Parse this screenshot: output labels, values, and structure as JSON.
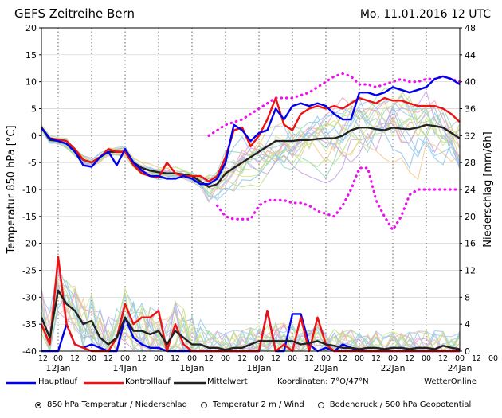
{
  "chart_data": {
    "type": "line",
    "title": "GEFS Zeitreihe Bern",
    "run_time": "Mo, 11.01.2016  12 UTC",
    "ylabel_left": "Temperatur 850 hPa [°C]",
    "ylabel_right": "Niederschlag [mm/6h]",
    "ylim_left": [
      -40,
      20
    ],
    "ylim_right": [
      0,
      48
    ],
    "yticks_left": [
      "20",
      "15",
      "10",
      "5",
      "0",
      "-5",
      "-10",
      "-15",
      "-20",
      "-25",
      "-30",
      "-35",
      "-40"
    ],
    "yticks_right": [
      "48",
      "44",
      "40",
      "36",
      "32",
      "28",
      "24",
      "20",
      "16",
      "12",
      "8",
      "4",
      "0"
    ],
    "x_hour_ticks": [
      "12",
      "00",
      "12",
      "00",
      "12",
      "00",
      "12",
      "00",
      "12",
      "00",
      "12",
      "00",
      "12",
      "00",
      "12",
      "00",
      "12",
      "00",
      "12",
      "00",
      "12",
      "00",
      "12",
      "00",
      "12",
      "00",
      "12",
      "00",
      "12",
      "00",
      "12",
      "00",
      "12"
    ],
    "x_date_labels": [
      "12Jan",
      "14Jan",
      "16Jan",
      "18Jan",
      "20Jan",
      "22Jan",
      "24Jan"
    ],
    "x_step_hours": 6,
    "legend": {
      "main": "Hauptlauf",
      "control": "Kontrolllauf",
      "mean": "Mittelwert",
      "coords": "Koordinaten:  7°O/47°N",
      "source": "WetterOnline"
    },
    "colors": {
      "main": "#0000ee",
      "control": "#ee1111",
      "mean": "#222222",
      "spread": "#ee11ee"
    },
    "series": [
      {
        "name": "Hauptlauf",
        "role": "main",
        "values": [
          1.5,
          -0.5,
          -1,
          -1.5,
          -3,
          -5.5,
          -5.8,
          -4,
          -3,
          -5.5,
          -2.5,
          -5,
          -6.5,
          -7.5,
          -7.5,
          -8,
          -8,
          -7.5,
          -8,
          -9,
          -9,
          -8,
          -5,
          2,
          1,
          -1,
          0.5,
          1,
          5,
          3,
          5.5,
          6,
          5.5,
          6,
          5.5,
          4,
          3,
          3,
          8,
          8,
          7.5,
          8,
          9,
          8.5,
          8,
          8.5,
          9,
          10.5,
          11,
          10.5,
          9.5
        ]
      },
      {
        "name": "Kontrolllauf",
        "role": "control",
        "values": [
          1.5,
          -0.5,
          -0.7,
          -1,
          -2.5,
          -4.5,
          -5,
          -4,
          -2.5,
          -3,
          -3,
          -5.5,
          -7,
          -7.5,
          -7.8,
          -5,
          -7,
          -7.5,
          -7.5,
          -7.5,
          -8.5,
          -7.5,
          -4,
          1,
          1.5,
          -2,
          0,
          3,
          7,
          2,
          1,
          4,
          5,
          5.5,
          5,
          5.5,
          5,
          6,
          7,
          6.5,
          6,
          7,
          6.5,
          6.5,
          6,
          5.5,
          5.5,
          5.5,
          5,
          4,
          2.5
        ]
      },
      {
        "name": "Mittelwert",
        "role": "mean",
        "values": [
          1.5,
          -0.8,
          -1,
          -1.5,
          -3,
          -4.5,
          -5,
          -4,
          -3,
          -3,
          -3,
          -5,
          -6,
          -6.5,
          -6.8,
          -7,
          -7,
          -7.2,
          -7.5,
          -8.5,
          -9.5,
          -9,
          -7,
          -6,
          -5,
          -4,
          -3,
          -2,
          -1,
          -1,
          -1,
          -0.8,
          -0.8,
          -0.6,
          -0.5,
          -0.5,
          0,
          1,
          1.5,
          1.5,
          1.2,
          1,
          1.5,
          1.3,
          1.2,
          1.5,
          2,
          1.8,
          1.5,
          0.5,
          -0.5
        ]
      },
      {
        "name": "Spread oben",
        "role": "spread",
        "values": [
          null,
          null,
          null,
          null,
          null,
          null,
          null,
          null,
          null,
          null,
          null,
          null,
          null,
          null,
          null,
          null,
          null,
          null,
          null,
          null,
          0,
          1,
          2,
          2.5,
          3,
          4,
          5,
          6,
          7,
          7,
          7,
          7.5,
          8,
          9,
          10,
          11,
          11.5,
          11,
          9.5,
          9.5,
          9,
          9.5,
          10,
          10.5,
          10,
          10,
          10.5,
          10.5,
          11,
          10.5,
          10
        ]
      },
      {
        "name": "Spread unten",
        "role": "spread",
        "values": [
          null,
          null,
          null,
          null,
          null,
          null,
          null,
          null,
          null,
          null,
          null,
          null,
          null,
          null,
          null,
          null,
          null,
          null,
          null,
          null,
          null,
          -13,
          -15,
          -15.5,
          -15.5,
          -15.5,
          -13,
          -12,
          -12,
          -12,
          -12.5,
          -12.5,
          -13,
          -14,
          -14.5,
          -15,
          -13,
          -10,
          -6,
          -6,
          -12,
          -15,
          -17.5,
          -15,
          -11,
          -10,
          -10,
          -10,
          -10,
          -10,
          -10
        ]
      }
    ],
    "precip_series": [
      {
        "name": "Hauptlauf",
        "role": "main",
        "values": [
          0,
          0,
          0,
          4,
          1,
          0.5,
          1,
          0.5,
          0,
          0,
          5,
          2,
          1,
          0.5,
          0.5,
          0,
          0,
          0,
          0,
          0,
          0,
          0,
          0,
          0,
          0,
          0,
          0,
          6,
          0,
          0,
          5.5,
          5.5,
          1,
          0,
          0.5,
          0,
          1,
          0.5,
          0,
          0,
          0,
          0,
          0,
          0,
          0,
          0,
          0,
          0,
          0,
          0,
          0
        ]
      },
      {
        "name": "Kontrolllauf",
        "role": "control",
        "values": [
          4,
          1,
          14,
          4,
          1,
          0.5,
          0,
          0,
          0,
          2,
          7,
          4,
          5,
          5,
          6,
          0,
          4,
          1,
          0,
          0,
          0,
          0,
          0,
          0,
          0,
          0,
          0,
          6,
          0,
          1,
          0,
          5,
          0,
          5,
          1,
          0,
          0,
          0,
          0,
          0,
          0,
          0,
          0,
          0,
          0,
          0,
          0,
          0,
          0,
          0,
          0
        ]
      },
      {
        "name": "Mittelwert",
        "role": "mean",
        "values": [
          5,
          2,
          9,
          7,
          6,
          4,
          4.5,
          2,
          1,
          2,
          5,
          3,
          3,
          2.5,
          3,
          1,
          3,
          2,
          1,
          1,
          0.5,
          0.5,
          0.2,
          0.5,
          0.5,
          1,
          1.5,
          1.5,
          1.5,
          1.5,
          1.5,
          1,
          1.2,
          1.5,
          1,
          0.8,
          0.5,
          0.5,
          0.3,
          0.5,
          0.5,
          0.3,
          0.5,
          0.5,
          0.3,
          0.5,
          0.5,
          0.3,
          0.8,
          0.5,
          0.3
        ]
      }
    ]
  },
  "controls": {
    "options": [
      "850 hPa Temperatur / Niederschlag",
      "Temperatur 2 m / Wind",
      "Bodendruck / 500 hPa Geopotential"
    ],
    "selected_index": 0
  }
}
